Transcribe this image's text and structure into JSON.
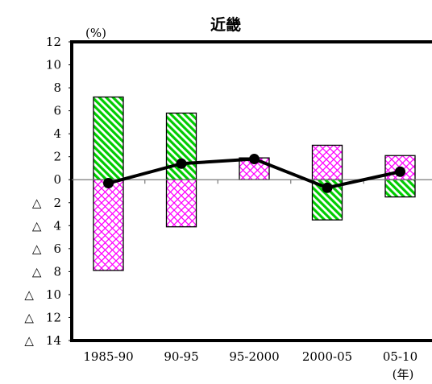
{
  "chart_data": {
    "type": "bar",
    "title": "近畿",
    "y_unit": "(%)",
    "x_unit": "(年)",
    "categories": [
      "1985-90",
      "90-95",
      "95-2000",
      "2000-05",
      "05-10"
    ],
    "ylim": [
      -14,
      12
    ],
    "y_ticks": [
      12,
      10,
      8,
      6,
      4,
      2,
      0,
      -2,
      -4,
      -6,
      -8,
      -10,
      -12,
      -14
    ],
    "y_tick_labels": [
      "12",
      "10",
      "8",
      "6",
      "4",
      "2",
      "0",
      "△　2",
      "△　4",
      "△　6",
      "△　8",
      "△　10",
      "△　12",
      "△　14"
    ],
    "series": [
      {
        "kind": "bar",
        "pattern": "diagonal-green",
        "color": "#00cc00",
        "values": [
          7.2,
          5.8,
          0.0,
          -3.5,
          -1.5
        ]
      },
      {
        "kind": "bar",
        "pattern": "crosshatch-magenta",
        "color": "#ff00ff",
        "values": [
          -7.9,
          -4.1,
          1.9,
          3.0,
          2.1
        ]
      },
      {
        "kind": "line",
        "color": "#000000",
        "values": [
          -0.3,
          1.4,
          1.8,
          -0.7,
          0.7
        ]
      }
    ],
    "grid": false,
    "legend": "none"
  }
}
